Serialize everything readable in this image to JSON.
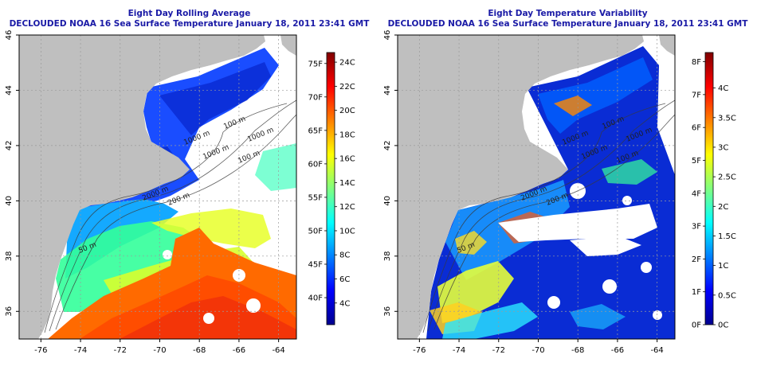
{
  "panels": [
    {
      "id": "left",
      "title": "Eight Day Rolling Average",
      "subtitle": "DECLOUDED NOAA 16 Sea Surface Temperature January 18, 2011 23:41 GMT",
      "x_ticks": [
        "-76",
        "-74",
        "-72",
        "-70",
        "-68",
        "-66",
        "-64"
      ],
      "y_ticks": [
        "36",
        "38",
        "40",
        "42",
        "44",
        "46"
      ],
      "contour_labels": [
        "100 m",
        "1000 m",
        "100 m",
        "1000 m",
        "1000 m",
        "2000 m",
        "200 m",
        "50 m"
      ],
      "colorbar": {
        "labels_left": [
          "75F",
          "70F",
          "65F",
          "60F",
          "55F",
          "50F",
          "45F",
          "40F"
        ],
        "labels_right": [
          "24C",
          "22C",
          "20C",
          "18C",
          "16C",
          "14C",
          "12C",
          "10C",
          "8C",
          "6C",
          "4C"
        ],
        "f_values": [
          75,
          70,
          65,
          60,
          55,
          50,
          45,
          40
        ],
        "c_values": [
          24,
          22,
          20,
          18,
          16,
          14,
          12,
          10,
          8,
          6,
          4
        ],
        "range_c": [
          2.2,
          24.8
        ],
        "colors": [
          "#00008f",
          "#0000ff",
          "#0080ff",
          "#00ffff",
          "#80ff80",
          "#ffff00",
          "#ff8000",
          "#ff0000",
          "#800000"
        ]
      }
    },
    {
      "id": "right",
      "title": "Eight Day Temperature Variability",
      "subtitle": "DECLOUDED NOAA 16 Sea Surface Temperature January 18, 2011 23:41 GMT",
      "x_ticks": [
        "-76",
        "-74",
        "-72",
        "-70",
        "-68",
        "-66",
        "-64"
      ],
      "y_ticks": [
        "36",
        "38",
        "40",
        "42",
        "44",
        "46"
      ],
      "contour_labels": [
        "100 m",
        "1000 m",
        "100 m",
        "1000 m",
        "1000 m",
        "2000 m",
        "200 m",
        "50 m"
      ],
      "colorbar": {
        "labels_left": [
          "8F",
          "7F",
          "6F",
          "5F",
          "4F",
          "3F",
          "2F",
          "1F",
          "0F"
        ],
        "labels_right": [
          "4C",
          "3.5C",
          "3C",
          "2.5C",
          "2C",
          "1.5C",
          "1C",
          "0.5C",
          "0C"
        ],
        "f_values": [
          8,
          7,
          6,
          5,
          4,
          3,
          2,
          1,
          0
        ],
        "c_values": [
          4,
          3.5,
          3,
          2.5,
          2,
          1.5,
          1,
          0.5,
          0
        ],
        "range_c": [
          0,
          4.6
        ],
        "colors": [
          "#00008f",
          "#0000ff",
          "#0080ff",
          "#00ffff",
          "#80ff80",
          "#ffff00",
          "#ff8000",
          "#ff0000",
          "#800000"
        ]
      }
    }
  ]
}
